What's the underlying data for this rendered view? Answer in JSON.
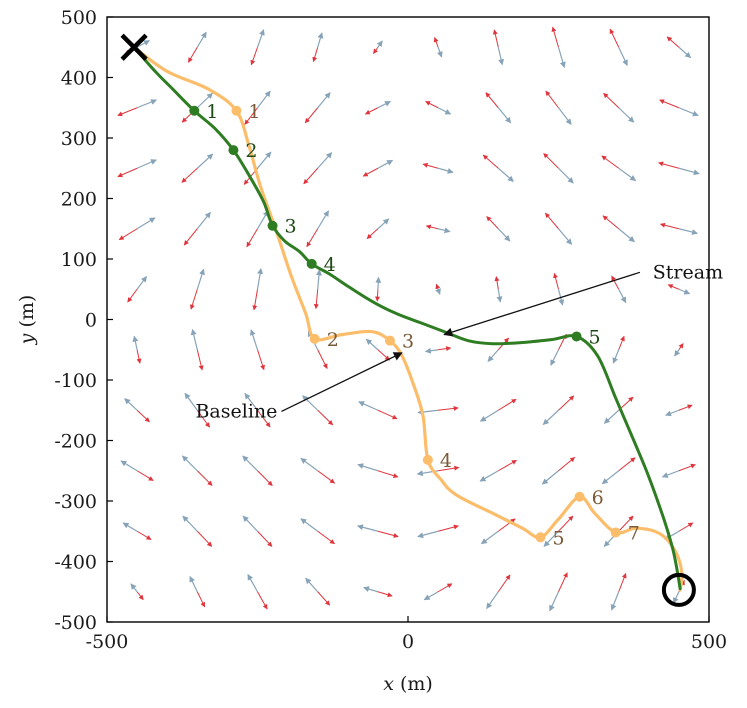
{
  "chart_data": {
    "type": "line",
    "xlabel_var": "x",
    "xlabel_unit": " (m)",
    "ylabel_var": "y",
    "ylabel_unit": " (m)",
    "xlim": [
      -500,
      500
    ],
    "ylim": [
      -500,
      500
    ],
    "xticks": [
      -500,
      0,
      500
    ],
    "yticks": [
      500,
      400,
      300,
      200,
      100,
      0,
      -100,
      -200,
      -300,
      -400,
      -500
    ],
    "grid": false,
    "start": {
      "x": -455,
      "y": 450
    },
    "goal": {
      "x": 450,
      "y": -447
    },
    "colors": {
      "stream": "#2e7d23",
      "baseline": "#fcbd6b",
      "stream_label": "#1e4a15",
      "baseline_label": "#7a5a38",
      "arrow_red": "#e0343c",
      "arrow_blue": "#87a3b8",
      "marker": "#000000"
    },
    "series": [
      {
        "name": "Stream",
        "path": [
          [
            -455,
            450
          ],
          [
            -420,
            410
          ],
          [
            -390,
            380
          ],
          [
            -355,
            345
          ],
          [
            -320,
            315
          ],
          [
            -290,
            280
          ],
          [
            -265,
            240
          ],
          [
            -240,
            195
          ],
          [
            -225,
            155
          ],
          [
            -205,
            130
          ],
          [
            -180,
            112
          ],
          [
            -160,
            92
          ],
          [
            -130,
            75
          ],
          [
            -100,
            55
          ],
          [
            -60,
            30
          ],
          [
            -20,
            10
          ],
          [
            20,
            -5
          ],
          [
            60,
            -20
          ],
          [
            100,
            -35
          ],
          [
            140,
            -40
          ],
          [
            190,
            -38
          ],
          [
            240,
            -33
          ],
          [
            280,
            -28
          ],
          [
            315,
            -60
          ],
          [
            345,
            -130
          ],
          [
            375,
            -200
          ],
          [
            400,
            -260
          ],
          [
            425,
            -330
          ],
          [
            440,
            -380
          ],
          [
            448,
            -420
          ],
          [
            452,
            -445
          ]
        ],
        "waypoints": [
          {
            "x": -355,
            "y": 345,
            "label": "1"
          },
          {
            "x": -290,
            "y": 280,
            "label": "2"
          },
          {
            "x": -225,
            "y": 155,
            "label": "3"
          },
          {
            "x": -160,
            "y": 92,
            "label": "4"
          },
          {
            "x": 280,
            "y": -28,
            "label": "5"
          }
        ]
      },
      {
        "name": "Baseline",
        "path": [
          [
            -455,
            450
          ],
          [
            -400,
            410
          ],
          [
            -330,
            380
          ],
          [
            -285,
            345
          ],
          [
            -265,
            290
          ],
          [
            -245,
            220
          ],
          [
            -220,
            150
          ],
          [
            -195,
            75
          ],
          [
            -170,
            10
          ],
          [
            -155,
            -32
          ],
          [
            -110,
            -25
          ],
          [
            -60,
            -20
          ],
          [
            -30,
            -35
          ],
          [
            -10,
            -60
          ],
          [
            10,
            -110
          ],
          [
            25,
            -160
          ],
          [
            33,
            -232
          ],
          [
            55,
            -265
          ],
          [
            80,
            -290
          ],
          [
            140,
            -320
          ],
          [
            190,
            -345
          ],
          [
            220,
            -360
          ],
          [
            250,
            -330
          ],
          [
            285,
            -293
          ],
          [
            310,
            -320
          ],
          [
            345,
            -352
          ],
          [
            380,
            -345
          ],
          [
            420,
            -355
          ],
          [
            445,
            -385
          ],
          [
            455,
            -420
          ],
          [
            452,
            -447
          ]
        ],
        "waypoints": [
          {
            "x": -285,
            "y": 345,
            "label": "1"
          },
          {
            "x": -155,
            "y": -32,
            "label": "2"
          },
          {
            "x": -30,
            "y": -35,
            "label": "3"
          },
          {
            "x": 33,
            "y": -232,
            "label": "4"
          },
          {
            "x": 220,
            "y": -360,
            "label": "5"
          },
          {
            "x": 285,
            "y": -293,
            "label": "6"
          },
          {
            "x": 345,
            "y": -352,
            "label": "7"
          }
        ]
      }
    ],
    "annotations": [
      {
        "text": "Stream",
        "text_at": {
          "x": 465,
          "y": 78
        },
        "point_to": {
          "x": 60,
          "y": -25
        }
      },
      {
        "text": "Baseline",
        "text_at": {
          "x": -285,
          "y": -152
        },
        "point_to": {
          "x": -10,
          "y": -55
        }
      }
    ],
    "vector_field": {
      "x_centers": [
        -450,
        -350,
        -250,
        -150,
        -50,
        50,
        150,
        250,
        350,
        450
      ],
      "y_centers": [
        450,
        350,
        250,
        150,
        50,
        -50,
        -150,
        -250,
        -350,
        -450
      ]
    }
  }
}
